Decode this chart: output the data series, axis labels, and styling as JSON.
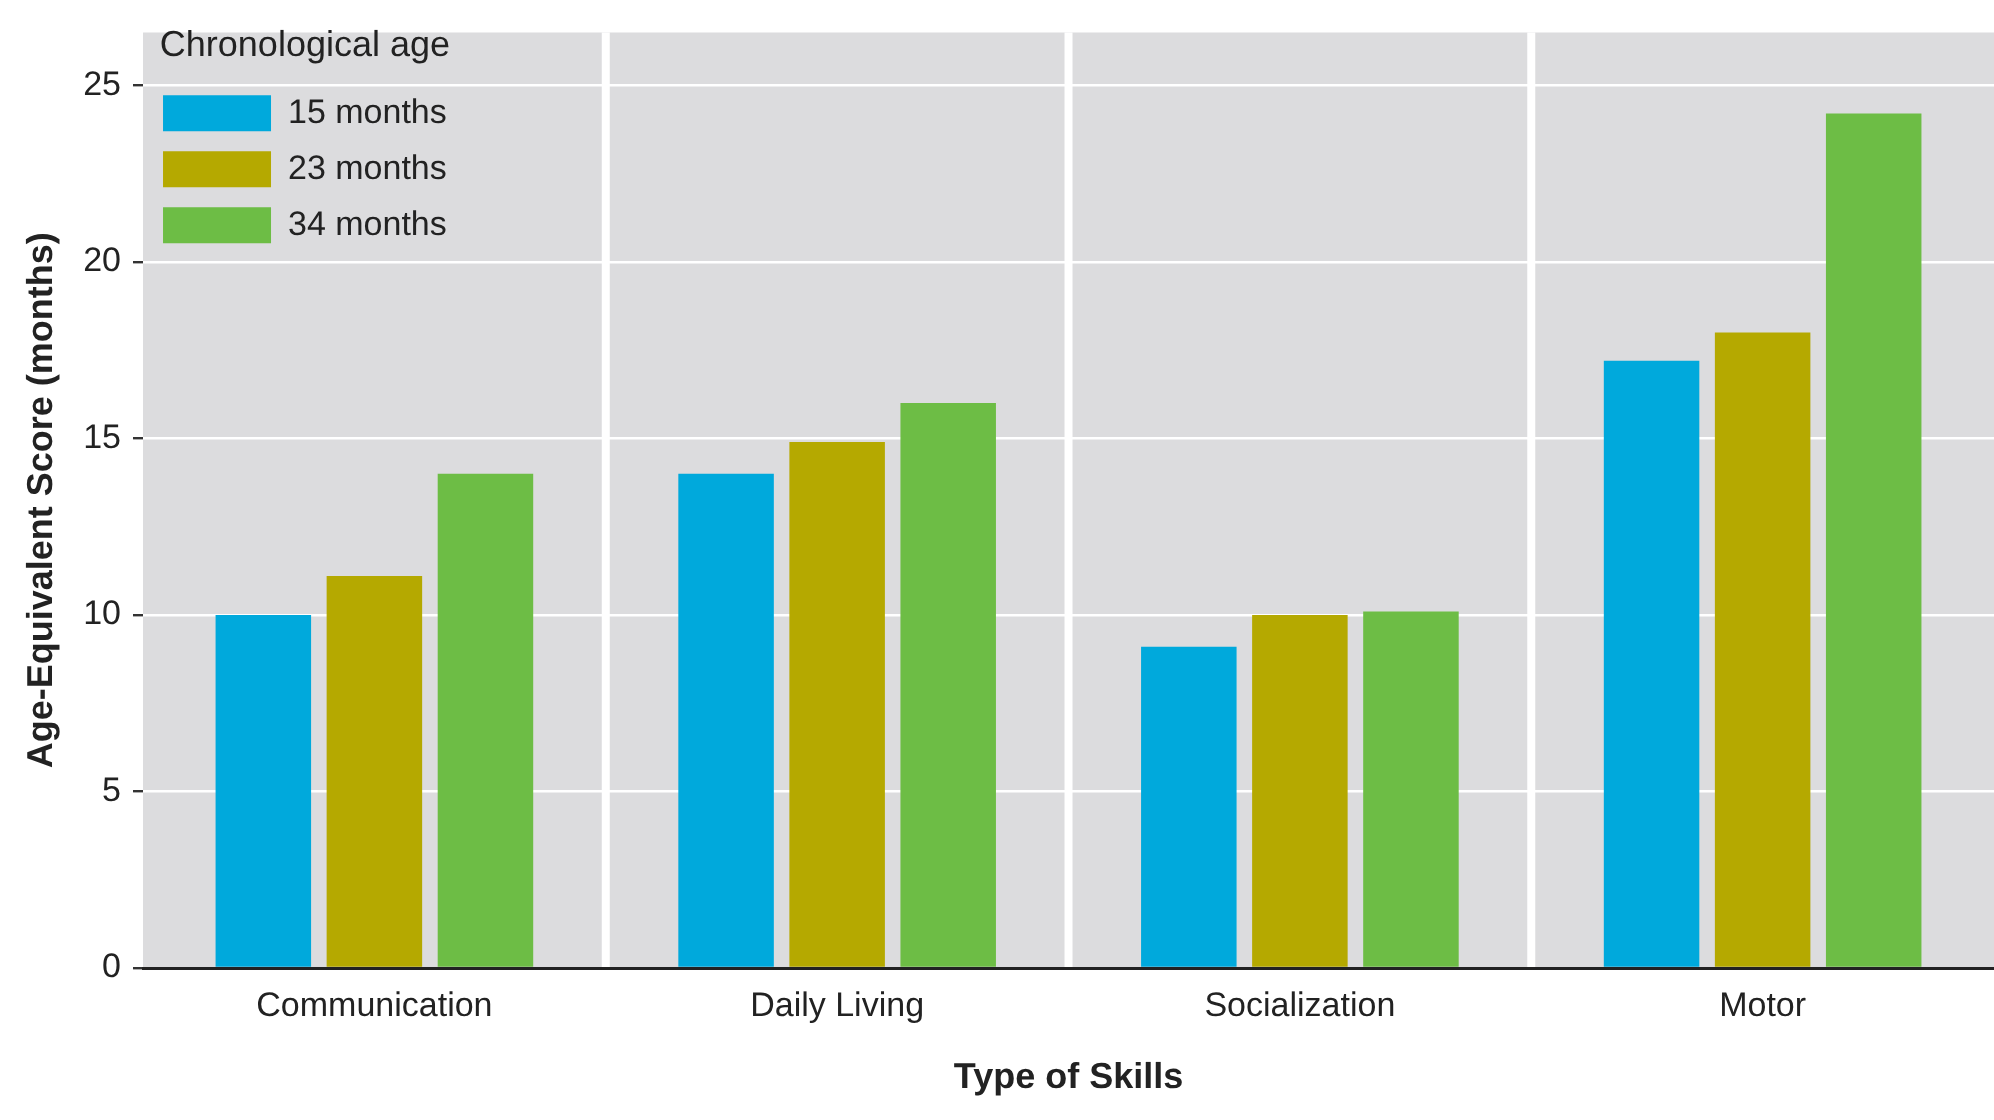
{
  "chart_data": {
    "type": "bar",
    "xlabel": "Type of Skills",
    "ylabel": "Age-Equivalent Score (months)",
    "legend_title": "Chronological age",
    "categories": [
      "Communication",
      "Daily Living",
      "Socialization",
      "Motor"
    ],
    "series": [
      {
        "name": "15 months",
        "color": "#00a9dc",
        "values": [
          10.0,
          14.0,
          9.1,
          17.2
        ]
      },
      {
        "name": "23 months",
        "color": "#b5a900",
        "values": [
          11.1,
          14.9,
          10.0,
          18.0
        ]
      },
      {
        "name": "34 months",
        "color": "#6dbd45",
        "values": [
          14.0,
          16.0,
          10.1,
          24.2
        ]
      }
    ],
    "ylim": [
      0,
      26.5
    ],
    "yticks": [
      0,
      5,
      10,
      15,
      20,
      25
    ],
    "grid": "y",
    "legend": "top left"
  }
}
